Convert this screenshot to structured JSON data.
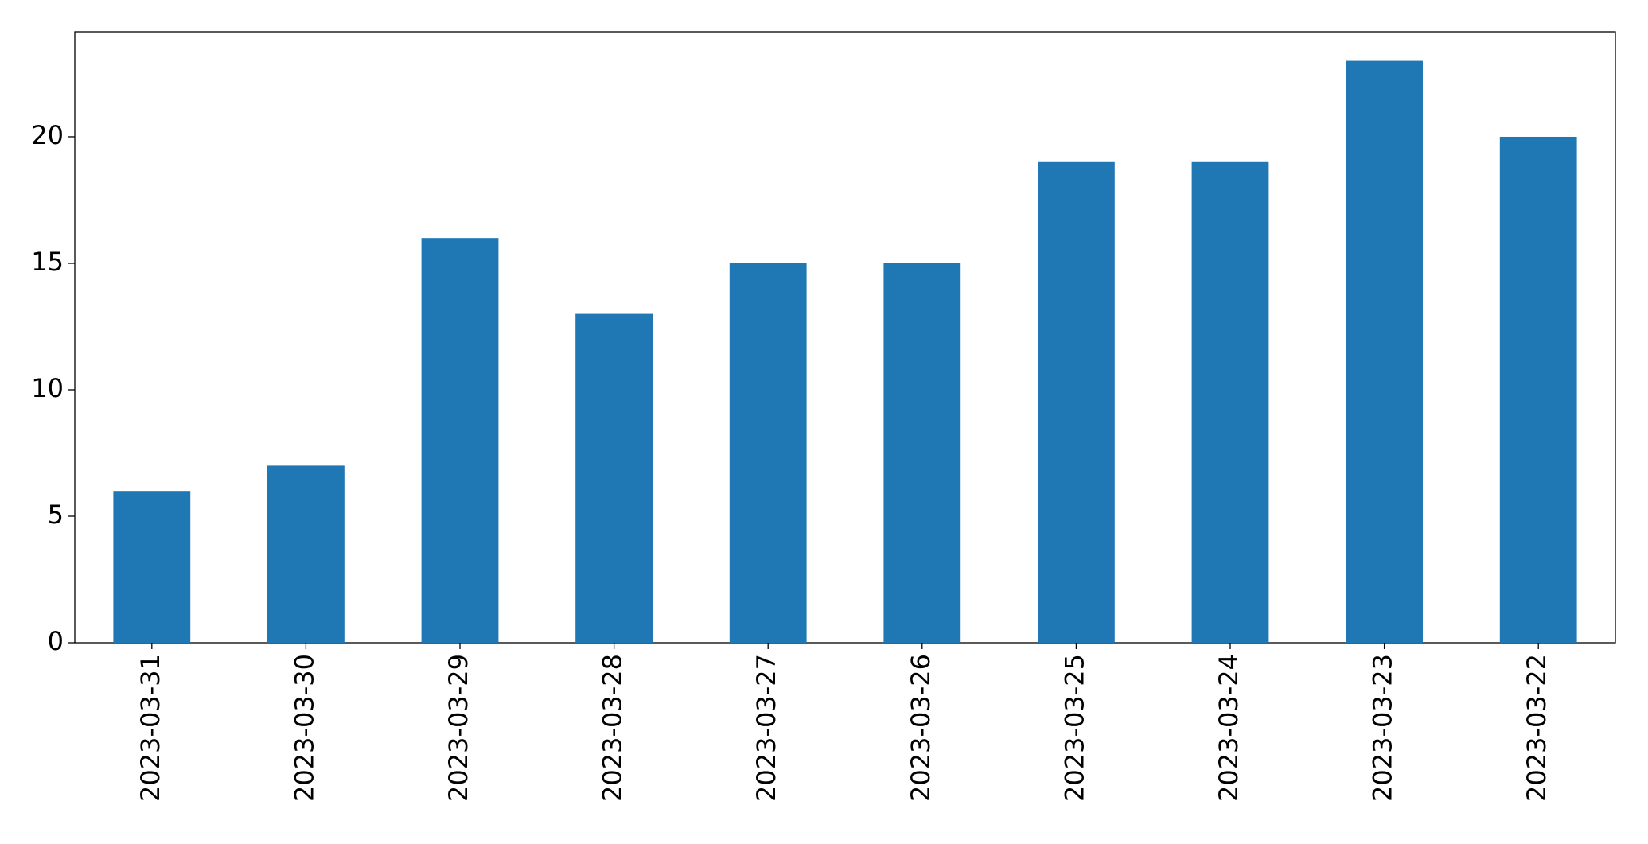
{
  "chart_data": {
    "type": "bar",
    "categories": [
      "2023-03-31",
      "2023-03-30",
      "2023-03-29",
      "2023-03-28",
      "2023-03-27",
      "2023-03-26",
      "2023-03-25",
      "2023-03-24",
      "2023-03-23",
      "2023-03-22"
    ],
    "values": [
      6,
      7,
      16,
      13,
      15,
      15,
      19,
      19,
      23,
      20
    ],
    "color": "#1f77b4",
    "ylim": [
      0,
      24.15
    ],
    "yticks": [
      0,
      5,
      10,
      15,
      20
    ],
    "grid": false
  }
}
